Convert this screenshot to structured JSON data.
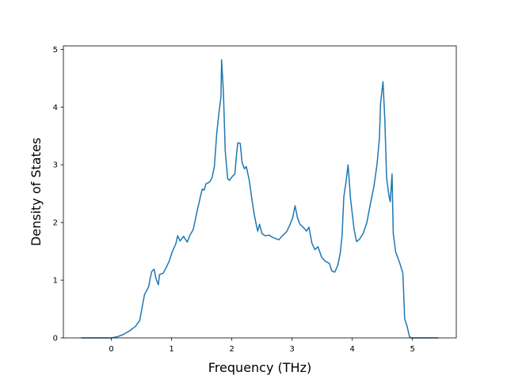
{
  "chart_data": {
    "type": "line",
    "xlabel": "Frequency (THz)",
    "ylabel": "Density of States",
    "xlim": [
      -0.797,
      5.727
    ],
    "ylim": [
      0,
      5.06
    ],
    "xticks": [
      0,
      1,
      2,
      3,
      4,
      5
    ],
    "yticks": [
      0,
      1,
      2,
      3,
      4,
      5
    ],
    "series": [
      {
        "color": "#1f77b4",
        "x": [
          -0.5,
          0.0,
          0.1,
          0.2,
          0.3,
          0.4,
          0.47,
          0.53,
          0.55,
          0.62,
          0.64,
          0.67,
          0.71,
          0.74,
          0.78,
          0.8,
          0.86,
          0.91,
          0.96,
          1.01,
          1.07,
          1.1,
          1.14,
          1.2,
          1.22,
          1.26,
          1.3,
          1.36,
          1.42,
          1.49,
          1.51,
          1.54,
          1.57,
          1.63,
          1.67,
          1.71,
          1.75,
          1.79,
          1.82,
          1.83,
          1.86,
          1.89,
          1.93,
          1.96,
          2.01,
          2.05,
          2.08,
          2.1,
          2.14,
          2.17,
          2.21,
          2.24,
          2.29,
          2.33,
          2.37,
          2.41,
          2.43,
          2.46,
          2.5,
          2.55,
          2.62,
          2.68,
          2.78,
          2.84,
          2.91,
          2.96,
          3.01,
          3.05,
          3.09,
          3.13,
          3.2,
          3.24,
          3.28,
          3.33,
          3.38,
          3.43,
          3.49,
          3.55,
          3.62,
          3.66,
          3.71,
          3.76,
          3.8,
          3.83,
          3.86,
          3.89,
          3.93,
          3.97,
          4.03,
          4.07,
          4.12,
          4.18,
          4.24,
          4.3,
          4.36,
          4.41,
          4.45,
          4.47,
          4.51,
          4.54,
          4.57,
          4.61,
          4.63,
          4.66,
          4.68,
          4.72,
          4.79,
          4.84,
          4.87,
          4.91,
          4.95,
          4.98,
          5.43
        ],
        "values": [
          0,
          0,
          0.02,
          0.06,
          0.12,
          0.2,
          0.3,
          0.64,
          0.75,
          0.89,
          1.01,
          1.15,
          1.19,
          1.03,
          0.92,
          1.1,
          1.12,
          1.22,
          1.33,
          1.49,
          1.63,
          1.77,
          1.68,
          1.76,
          1.72,
          1.66,
          1.77,
          1.88,
          2.18,
          2.5,
          2.58,
          2.56,
          2.67,
          2.7,
          2.77,
          2.97,
          3.55,
          3.93,
          4.18,
          4.82,
          4.27,
          3.25,
          2.76,
          2.73,
          2.8,
          2.84,
          3.2,
          3.38,
          3.37,
          3.04,
          2.93,
          2.97,
          2.73,
          2.42,
          2.15,
          1.94,
          1.85,
          1.97,
          1.81,
          1.77,
          1.78,
          1.74,
          1.7,
          1.77,
          1.84,
          1.95,
          2.08,
          2.29,
          2.08,
          1.97,
          1.9,
          1.85,
          1.92,
          1.64,
          1.53,
          1.58,
          1.4,
          1.33,
          1.29,
          1.16,
          1.14,
          1.26,
          1.47,
          1.77,
          2.45,
          2.66,
          3.0,
          2.42,
          1.88,
          1.67,
          1.71,
          1.81,
          1.99,
          2.32,
          2.63,
          3.0,
          3.45,
          4.07,
          4.44,
          3.79,
          2.77,
          2.45,
          2.36,
          2.84,
          1.81,
          1.49,
          1.29,
          1.12,
          0.33,
          0.2,
          0.02,
          0,
          0
        ]
      }
    ]
  }
}
